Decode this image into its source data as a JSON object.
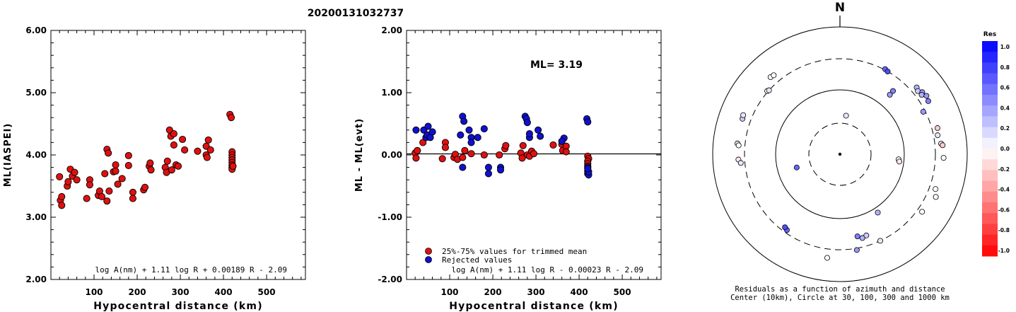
{
  "title": "20200131032737",
  "chart_data": [
    {
      "type": "scatter",
      "xlabel": "Hypocentral distance (km)",
      "ylabel": "ML(IASPEI)",
      "xlim": [
        0,
        590
      ],
      "ylim": [
        2.0,
        6.0
      ],
      "x_ticks": [
        "100",
        "200",
        "300",
        "400",
        "500"
      ],
      "y_ticks": [
        "2.00",
        "3.00",
        "4.00",
        "5.00",
        "6.00"
      ],
      "formula": "log A(nm) + 1.11 log R + 0.00189 R - 2.09",
      "marker_color": "#e01010",
      "series": [
        {
          "points": [
            [
              20,
              3.65
            ],
            [
              22,
              3.27
            ],
            [
              25,
              3.33
            ],
            [
              25,
              3.19
            ],
            [
              38,
              3.5
            ],
            [
              40,
              3.57
            ],
            [
              45,
              3.77
            ],
            [
              50,
              3.66
            ],
            [
              55,
              3.72
            ],
            [
              60,
              3.6
            ],
            [
              83,
              3.3
            ],
            [
              90,
              3.6
            ],
            [
              90,
              3.52
            ],
            [
              110,
              3.35
            ],
            [
              113,
              3.42
            ],
            [
              118,
              3.33
            ],
            [
              125,
              3.7
            ],
            [
              130,
              3.26
            ],
            [
              130,
              4.09
            ],
            [
              133,
              4.03
            ],
            [
              135,
              3.42
            ],
            [
              145,
              3.73
            ],
            [
              150,
              3.84
            ],
            [
              150,
              3.74
            ],
            [
              155,
              3.53
            ],
            [
              165,
              3.62
            ],
            [
              180,
              3.99
            ],
            [
              180,
              3.83
            ],
            [
              190,
              3.4
            ],
            [
              190,
              3.3
            ],
            [
              215,
              3.44
            ],
            [
              218,
              3.48
            ],
            [
              228,
              3.82
            ],
            [
              230,
              3.87
            ],
            [
              232,
              3.76
            ],
            [
              265,
              3.8
            ],
            [
              268,
              3.72
            ],
            [
              270,
              3.9
            ],
            [
              275,
              4.4
            ],
            [
              278,
              4.3
            ],
            [
              280,
              3.76
            ],
            [
              285,
              4.34
            ],
            [
              285,
              4.16
            ],
            [
              290,
              3.84
            ],
            [
              295,
              3.82
            ],
            [
              305,
              4.25
            ],
            [
              310,
              4.08
            ],
            [
              340,
              4.06
            ],
            [
              360,
              4.0
            ],
            [
              360,
              4.14
            ],
            [
              362,
              3.96
            ],
            [
              365,
              4.24
            ],
            [
              370,
              4.08
            ],
            [
              415,
              4.65
            ],
            [
              418,
              4.6
            ],
            [
              420,
              4.05
            ],
            [
              420,
              4.0
            ],
            [
              420,
              3.96
            ],
            [
              420,
              3.92
            ],
            [
              420,
              3.88
            ],
            [
              420,
              3.84
            ],
            [
              420,
              3.8
            ],
            [
              420,
              3.77
            ],
            [
              422,
              3.82
            ]
          ]
        }
      ]
    },
    {
      "type": "scatter",
      "xlabel": "Hypocentral distance (km)",
      "ylabel": "ML - ML(evt)",
      "xlim": [
        0,
        590
      ],
      "ylim": [
        -2.0,
        2.0
      ],
      "x_ticks": [
        "100",
        "200",
        "300",
        "400",
        "500"
      ],
      "y_ticks": [
        "-2.00",
        "-1.00",
        "0.00",
        "1.00",
        "2.00"
      ],
      "annotation": "ML= 3.19",
      "formula": "log A(nm) + 1.11 log R - 0.00023 R - 2.09",
      "series": [
        {
          "name": "25%-75% values for trimmed mean",
          "color": "#e01010",
          "points": [
            [
              20,
              0.03
            ],
            [
              22,
              -0.05
            ],
            [
              25,
              0.07
            ],
            [
              38,
              0.2
            ],
            [
              83,
              -0.06
            ],
            [
              90,
              0.2
            ],
            [
              90,
              0.12
            ],
            [
              110,
              -0.04
            ],
            [
              113,
              0.01
            ],
            [
              118,
              -0.07
            ],
            [
              130,
              -0.04
            ],
            [
              135,
              0.07
            ],
            [
              150,
              0.02
            ],
            [
              180,
              0.0
            ],
            [
              215,
              0.0
            ],
            [
              228,
              0.1
            ],
            [
              230,
              0.15
            ],
            [
              265,
              0.03
            ],
            [
              268,
              -0.05
            ],
            [
              270,
              0.15
            ],
            [
              280,
              0.0
            ],
            [
              285,
              -0.02
            ],
            [
              290,
              0.06
            ],
            [
              295,
              0.02
            ],
            [
              340,
              0.16
            ],
            [
              360,
              0.17
            ],
            [
              362,
              0.07
            ],
            [
              370,
              0.14
            ],
            [
              370,
              0.05
            ],
            [
              420,
              -0.02
            ],
            [
              422,
              -0.06
            ],
            [
              420,
              -0.1
            ],
            [
              420,
              -0.14
            ],
            [
              420,
              -0.18
            ]
          ]
        },
        {
          "name": "Rejected values",
          "color": "#1010d0",
          "points": [
            [
              22,
              0.4
            ],
            [
              40,
              0.4
            ],
            [
              45,
              0.28
            ],
            [
              48,
              0.32
            ],
            [
              50,
              0.46
            ],
            [
              55,
              0.28
            ],
            [
              60,
              0.37
            ],
            [
              125,
              0.32
            ],
            [
              130,
              0.62
            ],
            [
              133,
              0.54
            ],
            [
              130,
              -0.2
            ],
            [
              145,
              0.4
            ],
            [
              150,
              0.28
            ],
            [
              150,
              0.2
            ],
            [
              165,
              0.28
            ],
            [
              180,
              0.42
            ],
            [
              190,
              -0.2
            ],
            [
              190,
              -0.3
            ],
            [
              218,
              -0.2
            ],
            [
              218,
              -0.24
            ],
            [
              275,
              0.62
            ],
            [
              278,
              0.58
            ],
            [
              280,
              0.52
            ],
            [
              285,
              0.28
            ],
            [
              285,
              0.34
            ],
            [
              305,
              0.4
            ],
            [
              310,
              0.3
            ],
            [
              365,
              0.27
            ],
            [
              360,
              0.22
            ],
            [
              418,
              0.58
            ],
            [
              420,
              0.53
            ],
            [
              420,
              -0.2
            ],
            [
              420,
              -0.26
            ],
            [
              420,
              -0.3
            ],
            [
              422,
              -0.32
            ],
            [
              422,
              -0.27
            ],
            [
              420,
              -0.22
            ]
          ]
        }
      ]
    },
    {
      "type": "scatter",
      "north_label": "N",
      "caption_line1": "Residuals as a function of azimuth and distance",
      "caption_line2": "Center (10km), Circle at 30, 100, 300 and 1000 km",
      "colorbar_title": "Res",
      "colorbar_ticks": [
        "1.0",
        "0.8",
        "0.6",
        "0.4",
        "0.2",
        "0.0",
        "-0.2",
        "-0.4",
        "-0.6",
        "-0.8",
        "-1.0"
      ],
      "rings_km": [
        30,
        100,
        300,
        1000
      ],
      "stations": [
        {
          "az": -42,
          "dist": 410,
          "res": 0.0
        },
        {
          "az": -40,
          "dist": 400,
          "res": 0.0
        },
        {
          "az": -49,
          "dist": 310,
          "res": 0.0
        },
        {
          "az": -48,
          "dist": 300,
          "res": 0.1
        },
        {
          "az": -70,
          "dist": 410,
          "res": 0.2
        },
        {
          "az": -68,
          "dist": 420,
          "res": 0.1
        },
        {
          "az": -84,
          "dist": 400,
          "res": 0.1
        },
        {
          "az": -85,
          "dist": 380,
          "res": 0.0
        },
        {
          "az": -93,
          "dist": 380,
          "res": -0.1
        },
        {
          "az": -95,
          "dist": 350,
          "res": 0.1
        },
        {
          "az": -107,
          "dist": 50,
          "res": 0.6
        },
        {
          "az": 9,
          "dist": 40,
          "res": 0.1
        },
        {
          "az": 28,
          "dist": 310,
          "res": 0.6
        },
        {
          "az": 30,
          "dist": 300,
          "res": 0.7
        },
        {
          "az": 40,
          "dist": 190,
          "res": 0.5
        },
        {
          "az": 40,
          "dist": 160,
          "res": 0.4
        },
        {
          "az": 49,
          "dist": 380,
          "res": 0.3
        },
        {
          "az": 51,
          "dist": 360,
          "res": 0.2
        },
        {
          "az": 53,
          "dist": 400,
          "res": 0.4
        },
        {
          "az": 54,
          "dist": 370,
          "res": 0.3
        },
        {
          "az": 56,
          "dist": 420,
          "res": 0.4
        },
        {
          "az": 59,
          "dist": 400,
          "res": 0.5
        },
        {
          "az": 63,
          "dist": 280,
          "res": 0.4
        },
        {
          "az": 75,
          "dist": 370,
          "res": -0.2
        },
        {
          "az": 79,
          "dist": 350,
          "res": 0.1
        },
        {
          "az": 84,
          "dist": 380,
          "res": 0.1
        },
        {
          "az": 85,
          "dist": 400,
          "res": -0.2
        },
        {
          "az": 92,
          "dist": 410,
          "res": 0.0
        },
        {
          "az": 95,
          "dist": 82,
          "res": 0.0
        },
        {
          "az": 97,
          "dist": 85,
          "res": -0.1
        },
        {
          "az": 110,
          "dist": 380,
          "res": 0.0
        },
        {
          "az": 114,
          "dist": 430,
          "res": 0.0
        },
        {
          "az": 125,
          "dist": 360,
          "res": 0.0
        },
        {
          "az": 147,
          "dist": 120,
          "res": 0.3
        },
        {
          "az": 155,
          "dist": 300,
          "res": 0.1
        },
        {
          "az": 162,
          "dist": 210,
          "res": 0.2
        },
        {
          "az": 168,
          "dist": 200,
          "res": 0.5
        },
        {
          "az": 165,
          "dist": 220,
          "res": 0.3
        },
        {
          "az": 170,
          "dist": 320,
          "res": 0.4
        },
        {
          "az": -173,
          "dist": 420,
          "res": 0.0
        },
        {
          "az": -145,
          "dist": 270,
          "res": 0.6
        },
        {
          "az": -143,
          "dist": 260,
          "res": 0.7
        }
      ]
    }
  ]
}
